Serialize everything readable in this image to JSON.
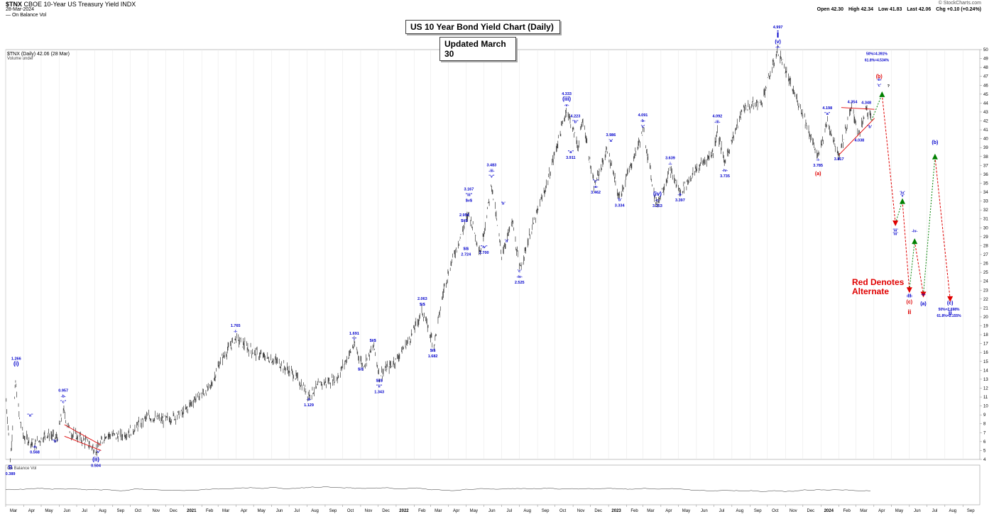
{
  "header": {
    "symbol": "$TNX",
    "description": "CBOE 10-Year US Treasury Yield INDX",
    "date": "28-Mar-2024",
    "indicator": "— On Balance Vol",
    "credit": "© StockCharts.com",
    "quote": {
      "open": "Open 42.30",
      "high": "High 42.34",
      "low": "Low 41.83",
      "last": "Last 42.06",
      "chg": "Chg +0.10 (+0.24%)"
    }
  },
  "title": "US 10 Year Bond Yield Chart (Daily)",
  "subtitle": "Updated March 30",
  "legend": {
    "symbol_line": "$TNX (Daily) 42.06 (28 Mar)",
    "volume_line": "Volume undef",
    "lower_panel": "On Balance Vol"
  },
  "alternate_note": [
    "Red Denotes",
    "Alternate"
  ],
  "colors": {
    "annotation_blue": "#0000cc",
    "alternate_red": "#e00000",
    "projection_green": "#008000",
    "price": "#000000"
  },
  "chart_data": {
    "type": "line",
    "style": "ohlc-bars",
    "ylim": [
      4,
      50
    ],
    "y_ticks": [
      4,
      5,
      6,
      7,
      8,
      9,
      10,
      11,
      12,
      13,
      14,
      15,
      16,
      17,
      18,
      19,
      20,
      21,
      22,
      23,
      24,
      25,
      26,
      27,
      28,
      29,
      30,
      31,
      32,
      33,
      34,
      35,
      36,
      37,
      38,
      39,
      40,
      41,
      42,
      43,
      44,
      45,
      46,
      47,
      48,
      49,
      50
    ],
    "x_tick_labels": [
      "Mar",
      "Apr",
      "May",
      "Jun",
      "Jul",
      "Aug",
      "Sep",
      "Oct",
      "Nov",
      "Dec",
      "2021",
      "Feb",
      "Mar",
      "Apr",
      "May",
      "Jun",
      "Jul",
      "Aug",
      "Sep",
      "Oct",
      "Nov",
      "Dec",
      "2022",
      "Feb",
      "Mar",
      "Apr",
      "May",
      "Jun",
      "Jul",
      "Aug",
      "Sep",
      "Oct",
      "Nov",
      "Dec",
      "2023",
      "Feb",
      "Mar",
      "Apr",
      "May",
      "Jun",
      "Jul",
      "Aug",
      "Sep",
      "Oct",
      "Nov",
      "Dec",
      "2024",
      "Feb",
      "Mar",
      "Apr",
      "May",
      "Jun",
      "Jul",
      "Aug",
      "Sep"
    ],
    "x_start": "2020-03-01",
    "x_end": "2024-09-30",
    "series": [
      {
        "values": [
          [
            "2020-03-01",
            11.5
          ],
          [
            "2020-03-09",
            4.0
          ],
          [
            "2020-03-18",
            12.66
          ],
          [
            "2020-03-25",
            8.5
          ],
          [
            "2020-04-01",
            6.5
          ],
          [
            "2020-04-21",
            5.68
          ],
          [
            "2020-05-10",
            6.9
          ],
          [
            "2020-05-28",
            6.4
          ],
          [
            "2020-06-08",
            9.57
          ],
          [
            "2020-06-20",
            7.0
          ],
          [
            "2020-07-10",
            6.3
          ],
          [
            "2020-08-04",
            5.04
          ],
          [
            "2020-08-20",
            6.8
          ],
          [
            "2020-09-15",
            6.6
          ],
          [
            "2020-10-10",
            7.5
          ],
          [
            "2020-10-31",
            8.8
          ],
          [
            "2020-11-30",
            8.4
          ],
          [
            "2020-12-31",
            9.2
          ],
          [
            "2021-01-20",
            10.8
          ],
          [
            "2021-02-15",
            12.0
          ],
          [
            "2021-03-05",
            15.0
          ],
          [
            "2021-03-31",
            17.65
          ],
          [
            "2021-05-01",
            16.0
          ],
          [
            "2021-06-10",
            15.0
          ],
          [
            "2021-07-10",
            13.5
          ],
          [
            "2021-08-04",
            11.29
          ],
          [
            "2021-08-25",
            12.5
          ],
          [
            "2021-09-20",
            13.0
          ],
          [
            "2021-10-21",
            16.91
          ],
          [
            "2021-11-05",
            14.5
          ],
          [
            "2021-11-24",
            16.7
          ],
          [
            "2021-12-03",
            13.43
          ],
          [
            "2021-12-31",
            15.1
          ],
          [
            "2022-01-24",
            17.5
          ],
          [
            "2022-02-15",
            20.63
          ],
          [
            "2022-03-07",
            16.82
          ],
          [
            "2022-03-25",
            23.5
          ],
          [
            "2022-04-08",
            26.5
          ],
          [
            "2022-05-06",
            31.67
          ],
          [
            "2022-05-26",
            27.24
          ],
          [
            "2022-06-14",
            34.83
          ],
          [
            "2022-07-01",
            27.0
          ],
          [
            "2022-07-20",
            30.7
          ],
          [
            "2022-08-01",
            25.25
          ],
          [
            "2022-08-20",
            29.5
          ],
          [
            "2022-09-15",
            34.5
          ],
          [
            "2022-10-21",
            43.33
          ],
          [
            "2022-11-10",
            39.11
          ],
          [
            "2022-11-18",
            42.23
          ],
          [
            "2022-12-07",
            34.62
          ],
          [
            "2022-12-30",
            38.8
          ],
          [
            "2023-01-19",
            33.34
          ],
          [
            "2023-03-02",
            40.91
          ],
          [
            "2023-03-24",
            32.53
          ],
          [
            "2023-04-17",
            36.39
          ],
          [
            "2023-05-04",
            33.97
          ],
          [
            "2023-05-31",
            36.5
          ],
          [
            "2023-06-30",
            38.5
          ],
          [
            "2023-07-07",
            40.92
          ],
          [
            "2023-07-19",
            37.35
          ],
          [
            "2023-08-21",
            43.5
          ],
          [
            "2023-09-20",
            44.0
          ],
          [
            "2023-10-19",
            49.97
          ],
          [
            "2023-11-10",
            46.0
          ],
          [
            "2023-11-30",
            43.0
          ],
          [
            "2023-12-27",
            37.85
          ],
          [
            "2024-01-12",
            41.98
          ],
          [
            "2024-02-01",
            38.17
          ],
          [
            "2024-02-23",
            43.54
          ],
          [
            "2024-03-07",
            40.38
          ],
          [
            "2024-03-19",
            43.48
          ],
          [
            "2024-03-28",
            42.06
          ]
        ]
      },
      {
        "values": [
          [
            "2024-03-28",
            42.06
          ],
          [
            "2024-04-15",
            45.0
          ],
          [
            "2024-05-08",
            30.5
          ],
          [
            "2024-05-20",
            33.0
          ],
          [
            "2024-06-01",
            23.0
          ],
          [
            "2024-06-10",
            28.5
          ],
          [
            "2024-06-25",
            22.5
          ],
          [
            "2024-07-15",
            38.0
          ],
          [
            "2024-08-10",
            22.0
          ]
        ]
      },
      {
        "values": [
          [
            "2024-04-01",
            38.0
          ],
          [
            "2024-04-20",
            36.0
          ]
        ]
      }
    ],
    "annotations": {
      "peak": [
        "4.997",
        "i",
        "(v)",
        "-v-"
      ],
      "alt_wave_labels": [
        "(b)",
        "(a)",
        "(c)",
        "ii",
        "-iii-",
        "-v-",
        "(a)",
        "-iv-",
        "'iv'",
        "'iii'",
        "(b)"
      ],
      "fib_upper": [
        "50%=4.391%",
        "61.8%=4.534%"
      ],
      "fib_lower": [
        "50%=2.698%",
        "61.8%=2.155%"
      ],
      "labels": [
        "1.266",
        "(i)",
        "\"a\"",
        "-a-",
        "0.568",
        "0.957",
        "-b-",
        "\"c\"",
        "\"b\"",
        "'v'",
        "(ii)",
        "0.504",
        "B",
        "0.389",
        "1.765",
        "-i-",
        "-ii-",
        "1.129",
        "1.691",
        "\"i\"",
        "$i$",
        "$ii$",
        "$ii$",
        "\"ii\"",
        "1.343",
        "2.063",
        "$i$",
        "$i$",
        "1.682",
        "2.954",
        "$ii$",
        "$i$",
        "2.724",
        "3.167",
        "\"iii\"",
        "$v$",
        "\"iv\"",
        "2.700",
        "3.483",
        "-iii-",
        "\"v\"",
        "'b'",
        "'a'",
        "'c'",
        "-iv-",
        "2.525",
        "4.333",
        "(iii)",
        "-v-",
        "4.223",
        "\"b\"",
        "\"a\"",
        "3.911",
        "\"c\"",
        "-a-",
        "3.462",
        "3.986",
        "'a'",
        "'b'",
        "3.334",
        "4.091",
        "-b-",
        "'c'",
        "3.639",
        "-i-",
        "(iv)",
        "-c-",
        "3.253",
        "-ii-",
        "3.397",
        "4.092",
        "-iii-",
        "-iv-",
        "3.735",
        "4.198",
        "\"a\"",
        "-i-",
        "3.785",
        "3.817",
        "4.354",
        "4.348",
        "'b'",
        "4.038",
        "-ii-",
        "'c'",
        "?",
        "-iii-",
        "'iii'",
        "'v'"
      ]
    }
  }
}
